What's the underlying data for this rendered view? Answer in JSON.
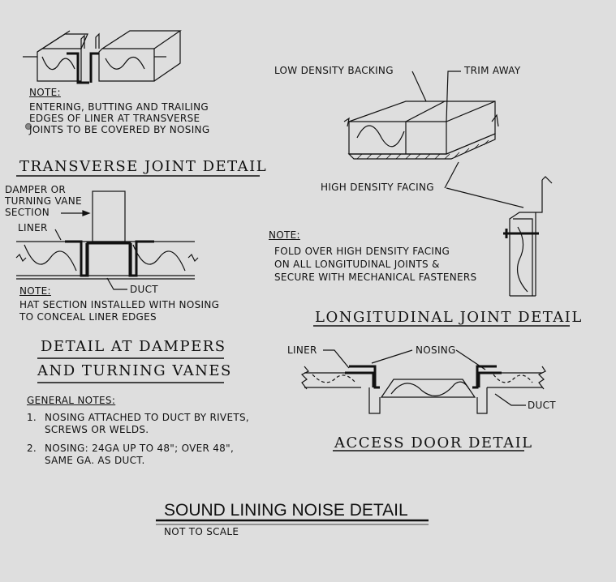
{
  "transverse": {
    "note_label": "NOTE:",
    "note_lines": [
      "ENTERING, BUTTING AND TRAILING",
      "EDGES OF LINER AT TRANSVERSE",
      "JOINTS TO BE COVERED BY NOSING"
    ],
    "title": "TRANSVERSE JOINT DETAIL"
  },
  "dampers": {
    "callout_lines": [
      "DAMPER OR",
      "TURNING VANE",
      "SECTION"
    ],
    "liner_label": "LINER",
    "duct_label": "DUCT",
    "note_label": "NOTE:",
    "note_lines": [
      "HAT SECTION INSTALLED WITH NOSING",
      "TO CONCEAL LINER EDGES"
    ],
    "title_lines": [
      "DETAIL AT DAMPERS",
      "AND TURNING VANES"
    ]
  },
  "general_notes": {
    "heading": "GENERAL NOTES:",
    "items": [
      {
        "num": "1.",
        "lines": [
          "NOSING ATTACHED TO DUCT BY RIVETS,",
          "SCREWS OR WELDS."
        ]
      },
      {
        "num": "2.",
        "lines": [
          "NOSING: 24GA UP TO 48\"; OVER 48\",",
          "SAME GA. AS DUCT."
        ]
      }
    ]
  },
  "longitudinal": {
    "low_density_label": "LOW DENSITY BACKING",
    "trim_label": "TRIM AWAY",
    "high_density_label": "HIGH DENSITY FACING",
    "note_label": "NOTE:",
    "note_lines": [
      "FOLD OVER HIGH DENSITY FACING",
      "ON ALL LONGITUDINAL JOINTS &",
      "SECURE WITH MECHANICAL FASTENERS"
    ],
    "title": "LONGITUDINAL JOINT DETAIL"
  },
  "access_door": {
    "liner_label": "LINER",
    "nosing_label": "NOSING",
    "duct_label": "DUCT",
    "title": "ACCESS DOOR DETAIL"
  },
  "sheet": {
    "title": "SOUND LINING NOISE DETAIL",
    "subtitle": "NOT TO SCALE"
  }
}
